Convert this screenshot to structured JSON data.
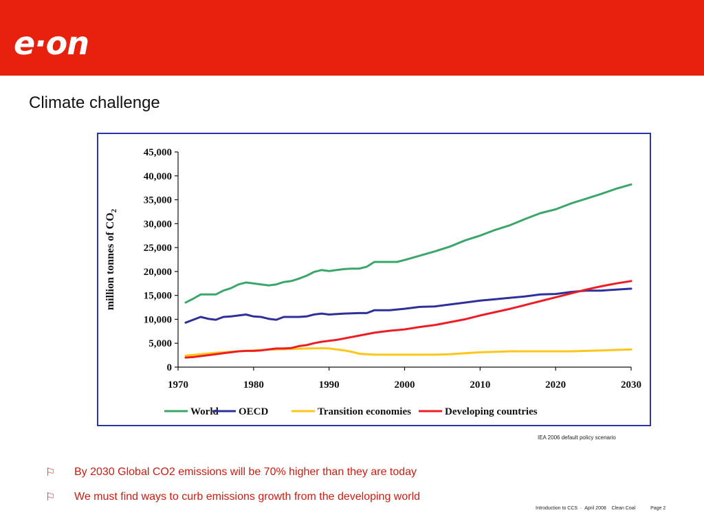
{
  "header": {
    "logo_text": "e·on",
    "accent_color": "#e8210f"
  },
  "slide": {
    "title": "Climate challenge"
  },
  "chart_data": {
    "type": "line",
    "ylabel_prefix": "million tonnes of CO",
    "ylabel_subscript": "2",
    "xlabel": "",
    "ylim": [
      0,
      45000
    ],
    "xlim": [
      1970,
      2030
    ],
    "yticks": [
      "0",
      "5,000",
      "10,000",
      "15,000",
      "20,000",
      "25,000",
      "30,000",
      "35,000",
      "40,000",
      "45,000"
    ],
    "ytick_values": [
      0,
      5000,
      10000,
      15000,
      20000,
      25000,
      30000,
      35000,
      40000,
      45000
    ],
    "xticks": [
      "1970",
      "1980",
      "1990",
      "2000",
      "2010",
      "2020",
      "2030"
    ],
    "xtick_values": [
      1970,
      1980,
      1990,
      2000,
      2010,
      2020,
      2030
    ],
    "grid": false,
    "legend_position": "bottom",
    "series": [
      {
        "name": "World",
        "color": "#3aa66a",
        "x": [
          1971,
          1972,
          1973,
          1974,
          1975,
          1976,
          1977,
          1978,
          1979,
          1980,
          1981,
          1982,
          1983,
          1984,
          1985,
          1986,
          1987,
          1988,
          1989,
          1990,
          1991,
          1992,
          1993,
          1994,
          1995,
          1996,
          1997,
          1998,
          1999,
          2000,
          2002,
          2004,
          2006,
          2008,
          2010,
          2012,
          2014,
          2016,
          2018,
          2020,
          2022,
          2024,
          2026,
          2028,
          2030
        ],
        "y": [
          13500,
          14300,
          15200,
          15200,
          15200,
          16000,
          16500,
          17300,
          17700,
          17500,
          17300,
          17100,
          17300,
          17800,
          18000,
          18500,
          19100,
          19900,
          20300,
          20100,
          20300,
          20500,
          20600,
          20600,
          21000,
          22000,
          22000,
          22000,
          22000,
          22400,
          23300,
          24200,
          25200,
          26500,
          27500,
          28700,
          29700,
          31000,
          32200,
          33000,
          34200,
          35200,
          36200,
          37300,
          38200
        ]
      },
      {
        "name": "OECD",
        "color": "#2e2f99",
        "x": [
          1971,
          1972,
          1973,
          1974,
          1975,
          1976,
          1977,
          1978,
          1979,
          1980,
          1981,
          1982,
          1983,
          1984,
          1985,
          1986,
          1987,
          1988,
          1989,
          1990,
          1992,
          1994,
          1995,
          1996,
          1998,
          2000,
          2002,
          2004,
          2006,
          2008,
          2010,
          2012,
          2014,
          2016,
          2018,
          2020,
          2022,
          2024,
          2026,
          2028,
          2030
        ],
        "y": [
          9300,
          9900,
          10500,
          10100,
          9900,
          10500,
          10600,
          10800,
          11000,
          10600,
          10500,
          10100,
          9900,
          10500,
          10500,
          10500,
          10600,
          11000,
          11200,
          11000,
          11200,
          11300,
          11300,
          11900,
          11900,
          12200,
          12600,
          12700,
          13100,
          13500,
          13900,
          14200,
          14500,
          14800,
          15200,
          15300,
          15700,
          16000,
          16000,
          16200,
          16400
        ]
      },
      {
        "name": "Transition economies",
        "color": "#ffc61a",
        "x": [
          1971,
          1973,
          1975,
          1977,
          1979,
          1981,
          1983,
          1985,
          1987,
          1989,
          1990,
          1991,
          1992,
          1993,
          1994,
          1995,
          1996,
          1998,
          2000,
          2002,
          2004,
          2006,
          2008,
          2010,
          2012,
          2014,
          2016,
          2018,
          2020,
          2022,
          2024,
          2026,
          2028,
          2030
        ],
        "y": [
          2400,
          2700,
          3000,
          3200,
          3400,
          3600,
          3700,
          3800,
          3900,
          3950,
          3900,
          3700,
          3500,
          3200,
          2800,
          2700,
          2600,
          2600,
          2600,
          2600,
          2600,
          2700,
          2900,
          3100,
          3200,
          3300,
          3300,
          3300,
          3300,
          3300,
          3400,
          3500,
          3600,
          3700
        ]
      },
      {
        "name": "Developing countries",
        "color": "#ee1c24",
        "x": [
          1971,
          1972,
          1973,
          1974,
          1975,
          1976,
          1977,
          1978,
          1979,
          1980,
          1981,
          1982,
          1983,
          1984,
          1985,
          1986,
          1987,
          1988,
          1989,
          1990,
          1991,
          1992,
          1993,
          1994,
          1995,
          1996,
          1998,
          2000,
          2002,
          2004,
          2006,
          2008,
          2010,
          2012,
          2014,
          2016,
          2018,
          2020,
          2022,
          2024,
          2026,
          2028,
          2030
        ],
        "y": [
          2000,
          2100,
          2300,
          2500,
          2700,
          2900,
          3100,
          3300,
          3400,
          3400,
          3500,
          3700,
          3900,
          3900,
          4000,
          4400,
          4600,
          5000,
          5300,
          5500,
          5700,
          6000,
          6300,
          6600,
          6900,
          7200,
          7600,
          7900,
          8400,
          8800,
          9400,
          10000,
          10800,
          11500,
          12200,
          13000,
          13800,
          14600,
          15400,
          16200,
          16900,
          17500,
          18000
        ]
      }
    ]
  },
  "source_note": "IEA 2006 default policy scenario",
  "bullets": [
    {
      "icon": "flag-icon",
      "text": "By 2030 Global CO2 emissions will be 70% higher than they are today"
    },
    {
      "icon": "flag-icon",
      "text": "We must find ways to curb emissions growth from the developing world"
    }
  ],
  "footer": {
    "presentation": "Introduction to CCS",
    "date": "April 2008",
    "topic": "Clean Coal",
    "page": "Page 2"
  }
}
